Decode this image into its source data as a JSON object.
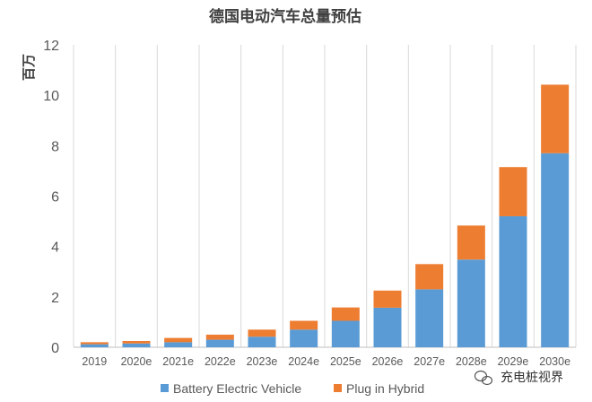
{
  "chart_data": {
    "type": "bar",
    "stacked": true,
    "title": "德国电动汽车总量预估",
    "ylabel": "百万",
    "xlabel": "",
    "ylim": [
      0,
      12
    ],
    "yticks": [
      0,
      2,
      4,
      6,
      8,
      10,
      12
    ],
    "grid": "vertical",
    "legend_position": "bottom",
    "categories": [
      "2019",
      "2020e",
      "2021e",
      "2022e",
      "2023e",
      "2024e",
      "2025e",
      "2026e",
      "2027e",
      "2028e",
      "2029e",
      "2030e"
    ],
    "series": [
      {
        "name": "Battery Electric Vehicle",
        "color": "#5b9bd5",
        "values": [
          0.12,
          0.15,
          0.2,
          0.3,
          0.42,
          0.7,
          1.05,
          1.57,
          2.3,
          3.48,
          5.2,
          7.7
        ]
      },
      {
        "name": "Plug in Hybrid",
        "color": "#ed7d31",
        "values": [
          0.08,
          0.1,
          0.17,
          0.2,
          0.28,
          0.35,
          0.53,
          0.68,
          1.0,
          1.35,
          1.95,
          2.72
        ]
      }
    ]
  },
  "watermark": {
    "text": "充电桩视界",
    "icon": "wechat-icon"
  }
}
